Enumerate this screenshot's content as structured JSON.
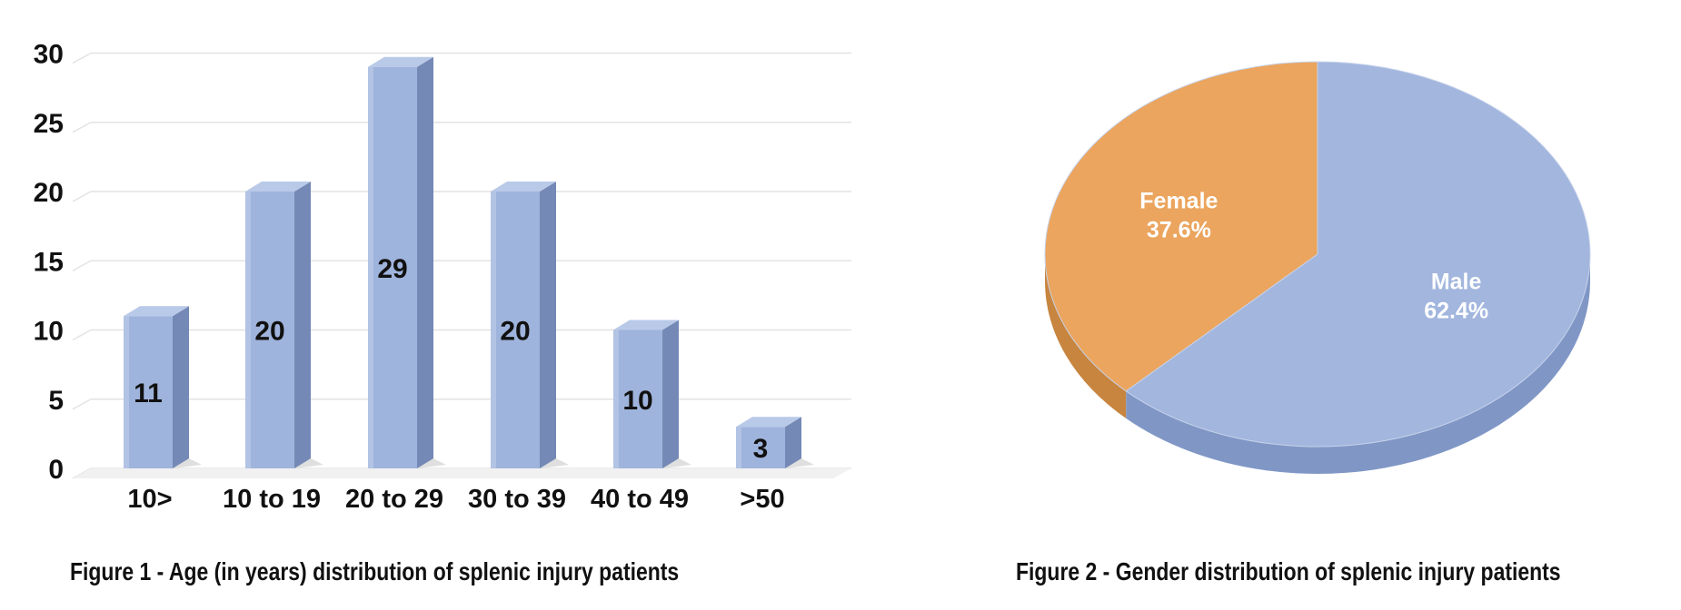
{
  "chart_data": [
    {
      "type": "bar",
      "title": "Figure 1 - Age (in years) distribution of splenic injury patients",
      "categories": [
        "10>",
        "10 to 19",
        "20 to 29",
        "30 to 39",
        "40 to 49",
        ">50"
      ],
      "values": [
        11,
        20,
        29,
        20,
        10,
        3
      ],
      "data_labels": [
        "11",
        "20",
        "29",
        "20",
        "10",
        "3"
      ],
      "yticks": [
        "0",
        "5",
        "10",
        "15",
        "20",
        "25",
        "30"
      ],
      "ylim": [
        0,
        30
      ],
      "grid": true,
      "colors": {
        "bar_front": "#9fb4dc",
        "bar_side": "#7489b5",
        "bar_top": "#b9c9e8"
      }
    },
    {
      "type": "pie",
      "title": "Figure 2 - Gender distribution of splenic injury patients",
      "slices": [
        {
          "label": "Male",
          "value": 62.4,
          "value_label": "62.4%",
          "color": "#a2b6de"
        },
        {
          "label": "Female",
          "value": 37.6,
          "value_label": "37.6%",
          "color": "#eba55e"
        }
      ]
    }
  ]
}
